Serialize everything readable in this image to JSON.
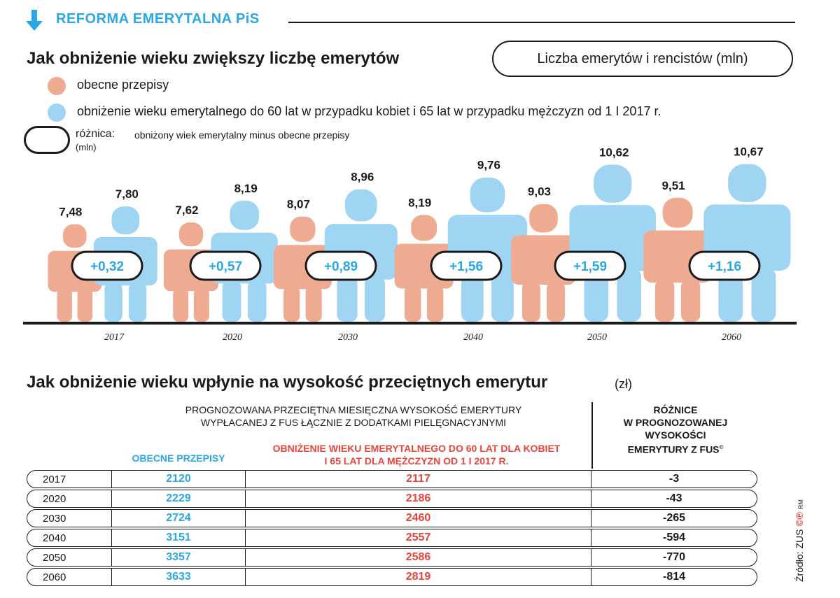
{
  "header": {
    "title": "REFORMA EMERYTALNA PiS"
  },
  "section1": {
    "title": "Jak obniżenie wieku zwiększy liczbę emerytów",
    "unit_label": "Liczba emerytów i rencistów (mln)",
    "legend": {
      "current": "obecne przepisy",
      "lowered": "obniżenie wieku emerytalnego do 60 lat w przypadku kobiet i 65 lat w przypadku mężczyzn od 1 I 2017 r.",
      "diff_label": "różnica:",
      "diff_desc": "obniżony wiek emerytalny minus obecne przepisy",
      "diff_unit": "(mln)"
    },
    "colors": {
      "current": "#efaa92",
      "lowered": "#9fd4f2",
      "accent": "#2aa7e6",
      "red": "#e8443a"
    }
  },
  "chart_data": {
    "type": "bar",
    "categories": [
      "2017",
      "2020",
      "2030",
      "2040",
      "2050",
      "2060"
    ],
    "series": [
      {
        "name": "obecne przepisy",
        "values": [
          7.48,
          7.62,
          8.07,
          8.19,
          9.03,
          9.51
        ],
        "labels": [
          "7,48",
          "7,62",
          "8,07",
          "8,19",
          "9,03",
          "9,51"
        ]
      },
      {
        "name": "obniżenie wieku emerytalnego",
        "values": [
          7.8,
          8.19,
          8.96,
          9.76,
          10.62,
          10.67
        ],
        "labels": [
          "7,80",
          "8,19",
          "8,96",
          "9,76",
          "10,62",
          "10,67"
        ]
      }
    ],
    "differences": [
      "+0,32",
      "+0,57",
      "+0,89",
      "+1,56",
      "+1,59",
      "+1,16"
    ]
  },
  "section2": {
    "title": "Jak obniżenie wieku wpłynie na wysokość przeciętnych emerytur",
    "unit": "(zł)",
    "projection_header_line1": "PROGNOZOWANA PRZECIĘTNA MIESIĘCZNA WYSOKOŚĆ EMERYTURY",
    "projection_header_line2": "WYPŁACANEJ Z FUS ŁĄCZNIE Z DODATKAMI PIELĘGNACYJNYMI",
    "col_current": "OBECNE PRZEPISY",
    "col_lowered_line1": "OBNIŻENIE WIEKU EMERYTALNEGO DO 60 LAT DLA KOBIET",
    "col_lowered_line2": "I 65 LAT DLA MĘŻCZYZN OD 1 I 2017 R.",
    "col_diff_line1": "RÓŻNICE",
    "col_diff_line2": "W PROGNOZOWANEJ",
    "col_diff_line3": "WYSOKOŚCI",
    "col_diff_line4": "EMERYTURY Z FUS",
    "col_diff_sup": "©",
    "rows": [
      {
        "year": "2017",
        "current": "2120",
        "lowered": "2117",
        "diff": "-3"
      },
      {
        "year": "2020",
        "current": "2229",
        "lowered": "2186",
        "diff": "-43"
      },
      {
        "year": "2030",
        "current": "2724",
        "lowered": "2460",
        "diff": "-265"
      },
      {
        "year": "2040",
        "current": "3151",
        "lowered": "2557",
        "diff": "-594"
      },
      {
        "year": "2050",
        "current": "3357",
        "lowered": "2586",
        "diff": "-770"
      },
      {
        "year": "2060",
        "current": "3633",
        "lowered": "2819",
        "diff": "-814"
      }
    ]
  },
  "source": "Źródło: ZUS",
  "credit": "RM"
}
